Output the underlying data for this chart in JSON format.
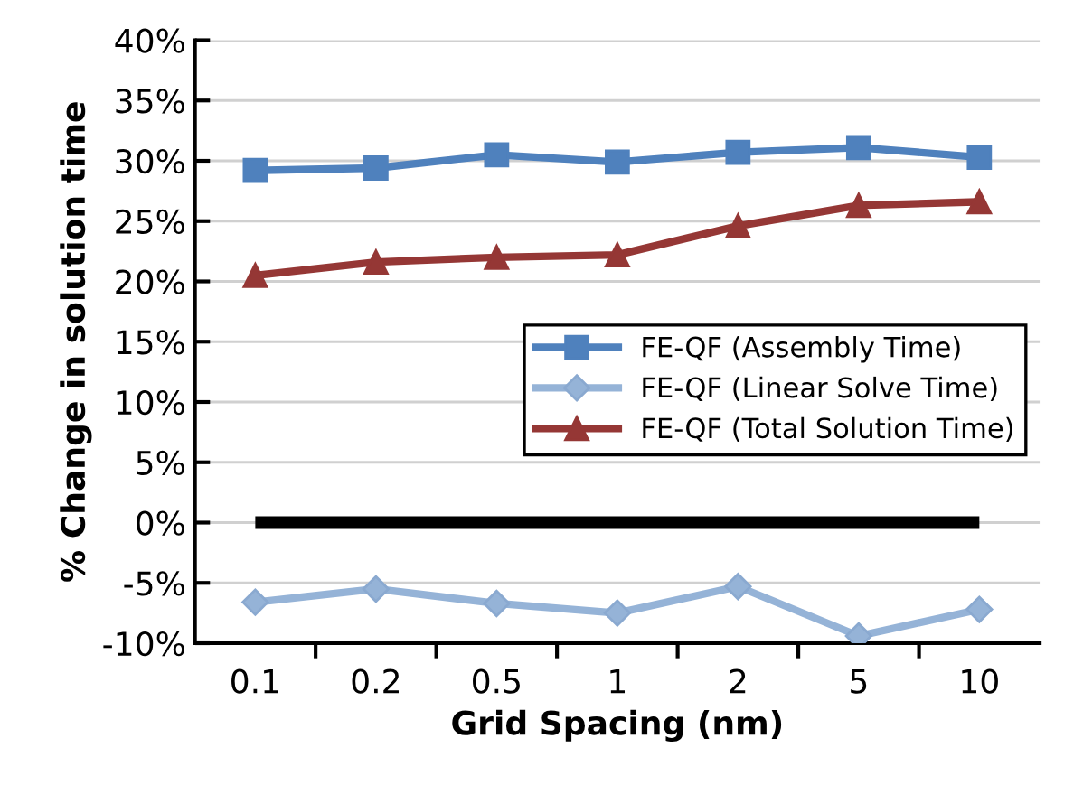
{
  "chart_data": {
    "type": "line",
    "xlabel": "Grid Spacing (nm)",
    "ylabel": "% Change in solution time",
    "categories": [
      "0.1",
      "0.2",
      "0.5",
      "1",
      "2",
      "5",
      "10"
    ],
    "series": [
      {
        "name": "FE-QF (Assembly Time)",
        "color": "#4f81bd",
        "marker": "square",
        "values": [
          29.2,
          29.4,
          30.5,
          29.9,
          30.7,
          31.1,
          30.3
        ]
      },
      {
        "name": "FE-QF (Linear Solve Time)",
        "color": "#95b3d7",
        "marker": "diamond",
        "values": [
          -6.6,
          -5.5,
          -6.7,
          -7.5,
          -5.3,
          -9.4,
          -7.2
        ]
      },
      {
        "name": "FE-QF (Total Solution Time)",
        "color": "#953735",
        "marker": "triangle",
        "values": [
          20.5,
          21.6,
          22.0,
          22.2,
          24.6,
          26.3,
          26.6
        ]
      }
    ],
    "ylim": [
      -10,
      40
    ],
    "yticks": [
      {
        "value": -10,
        "label": "-10%"
      },
      {
        "value": -5,
        "label": "-5%"
      },
      {
        "value": 0,
        "label": "0%"
      },
      {
        "value": 5,
        "label": "5%"
      },
      {
        "value": 10,
        "label": "10%"
      },
      {
        "value": 15,
        "label": "15%"
      },
      {
        "value": 20,
        "label": "20%"
      },
      {
        "value": 25,
        "label": "25%"
      },
      {
        "value": 30,
        "label": "30%"
      },
      {
        "value": 35,
        "label": "35%"
      },
      {
        "value": 40,
        "label": "40%"
      }
    ],
    "ref_lines": [
      {
        "axis": "y",
        "value": 0,
        "color": "#000000"
      }
    ],
    "grid": "y",
    "legend": "right",
    "line_style": "solid"
  }
}
